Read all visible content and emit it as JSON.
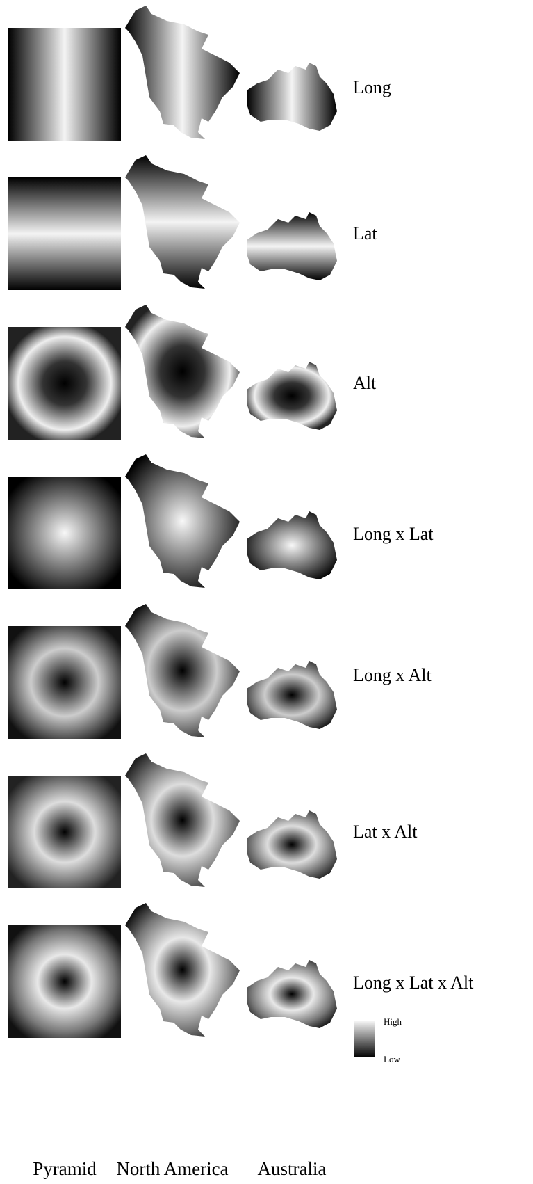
{
  "rows": [
    "Long",
    "Lat",
    "Alt",
    "Long x Lat",
    "Long x Alt",
    "Lat x Alt",
    "Long x Lat x Alt"
  ],
  "columns": [
    "Pyramid",
    "North America",
    "Australia"
  ],
  "legend": {
    "high": "High",
    "low": "Low"
  }
}
